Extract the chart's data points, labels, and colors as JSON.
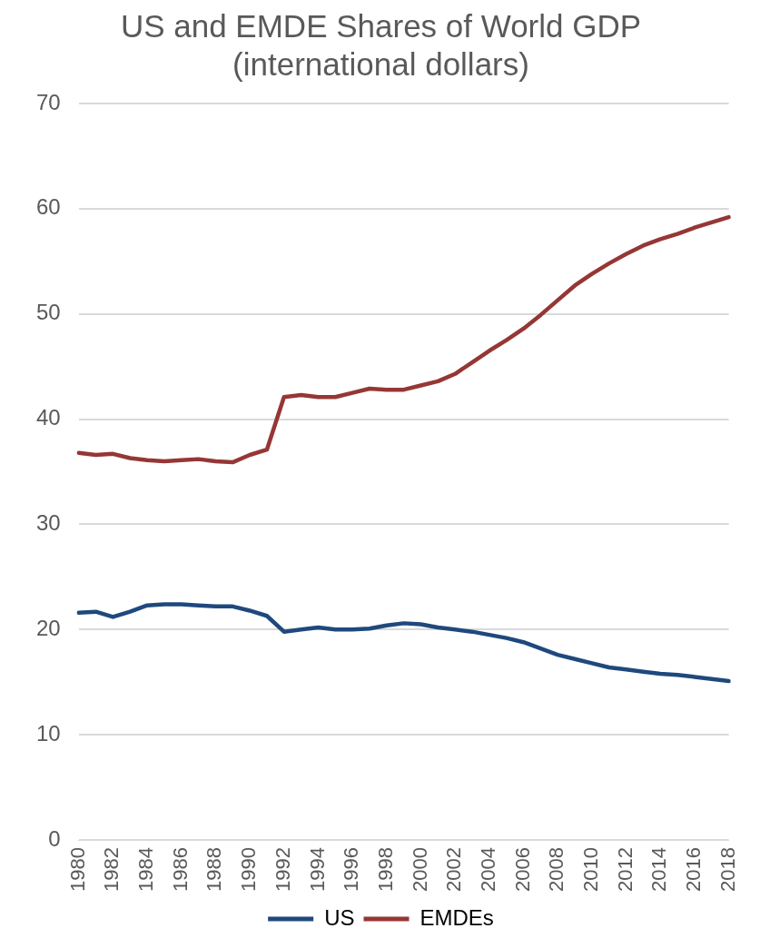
{
  "chart_data": {
    "type": "line",
    "title": "US and EMDE Shares of World GDP\n(international dollars)",
    "categories": [
      "1980",
      null,
      "1982",
      null,
      "1984",
      null,
      "1986",
      null,
      "1988",
      null,
      "1990",
      null,
      "1992",
      null,
      "1994",
      null,
      "1996",
      null,
      "1998",
      null,
      "2000",
      null,
      "2002",
      null,
      "2004",
      null,
      "2006",
      null,
      "2008",
      null,
      "2010",
      null,
      "2012",
      null,
      "2014",
      null,
      "2016",
      null,
      "2018"
    ],
    "series": [
      {
        "name": "US",
        "color": "#1f497d",
        "values": [
          21.6,
          21.7,
          21.2,
          21.7,
          22.3,
          22.4,
          22.4,
          22.3,
          22.2,
          22.2,
          21.8,
          21.3,
          19.8,
          20.0,
          20.2,
          20.0,
          20.0,
          20.1,
          20.4,
          20.6,
          20.5,
          20.2,
          20.0,
          19.8,
          19.5,
          19.2,
          18.8,
          18.2,
          17.6,
          17.2,
          16.8,
          16.4,
          16.2,
          16.0,
          15.8,
          15.7,
          15.5,
          15.3,
          15.1
        ]
      },
      {
        "name": "EMDEs",
        "color": "#953735",
        "values": [
          36.8,
          36.6,
          36.7,
          36.3,
          36.1,
          36.0,
          36.1,
          36.2,
          36.0,
          35.9,
          36.6,
          37.1,
          42.1,
          42.3,
          42.1,
          42.1,
          42.5,
          42.9,
          42.8,
          42.8,
          43.2,
          43.6,
          44.3,
          45.4,
          46.5,
          47.5,
          48.6,
          49.9,
          51.3,
          52.7,
          53.8,
          54.8,
          55.7,
          56.5,
          57.1,
          57.6,
          58.2,
          58.7,
          59.2
        ]
      }
    ],
    "ylim": [
      0,
      70
    ],
    "yticks": [
      0,
      10,
      20,
      30,
      40,
      50,
      60,
      70
    ],
    "grid": "y",
    "legend": "bottom",
    "marker": "none",
    "line_style": "solid"
  }
}
